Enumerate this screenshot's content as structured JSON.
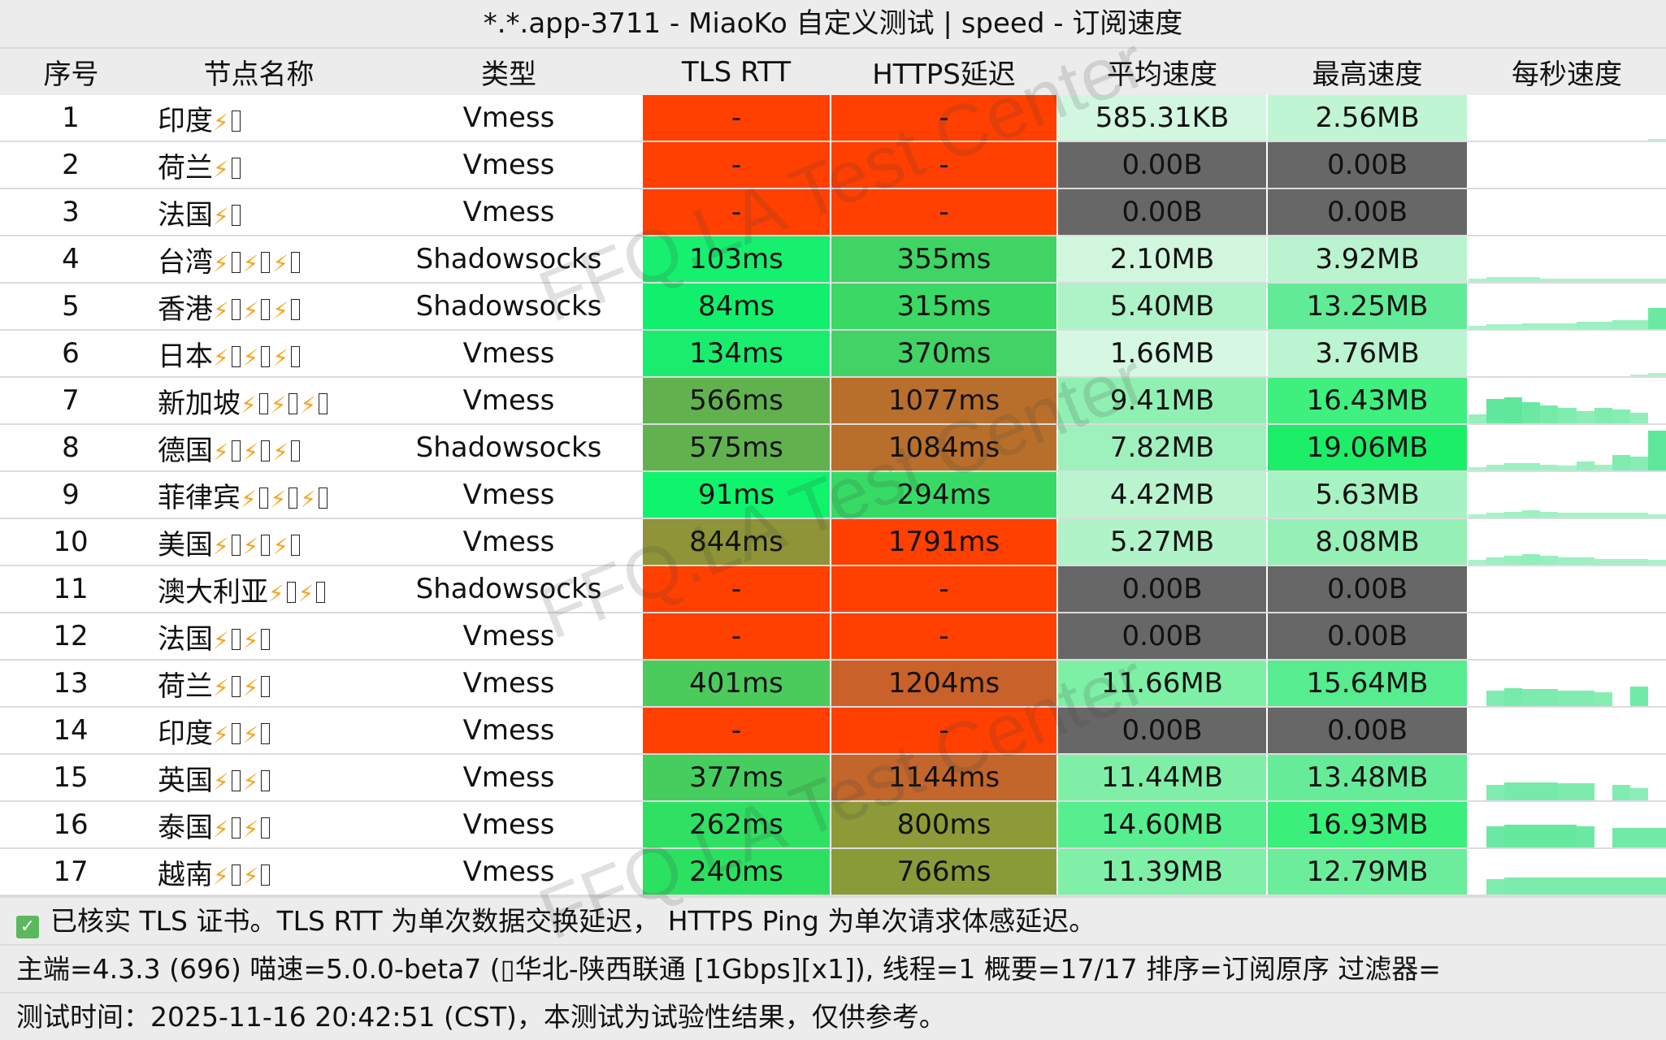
{
  "title": "*.*.app-3711 - MiaoKo 自定义测试 | speed - 订阅速度",
  "columns": [
    "序号",
    "节点名称",
    "类型",
    "TLS RTT",
    "HTTPS延迟",
    "平均速度",
    "最高速度",
    "每秒速度"
  ],
  "colors": {
    "fail_red": "#ff4000",
    "dead_gray": "#676767",
    "bolt_orange": "#f5a623"
  },
  "rows": [
    {
      "idx": "1",
      "name": "印度",
      "flags": 1,
      "type": "Vmess",
      "tls": "-",
      "https": "-",
      "avg": "585.31KB",
      "max": "2.56MB",
      "tls_color": "#ff4000",
      "https_color": "#ff4000",
      "avg_color": "#d2f7e0",
      "max_color": "#c0f5d4",
      "spark": [
        0,
        0,
        0,
        0,
        0,
        0,
        0,
        0,
        0,
        0,
        1
      ]
    },
    {
      "idx": "2",
      "name": "荷兰",
      "flags": 1,
      "type": "Vmess",
      "tls": "-",
      "https": "-",
      "avg": "0.00B",
      "max": "0.00B",
      "tls_color": "#ff4000",
      "https_color": "#ff4000",
      "avg_color": "#676767",
      "max_color": "#676767",
      "spark": []
    },
    {
      "idx": "3",
      "name": "法国",
      "flags": 1,
      "type": "Vmess",
      "tls": "-",
      "https": "-",
      "avg": "0.00B",
      "max": "0.00B",
      "tls_color": "#ff4000",
      "https_color": "#ff4000",
      "avg_color": "#676767",
      "max_color": "#676767",
      "spark": []
    },
    {
      "idx": "4",
      "name": "台湾",
      "flags": 3,
      "type": "Shadowsocks",
      "tls": "103ms",
      "https": "355ms",
      "avg": "2.10MB",
      "max": "3.92MB",
      "tls_color": "#17ef6e",
      "https_color": "#3fd464",
      "avg_color": "#d0f7de",
      "max_color": "#b9f3cf",
      "spark": [
        2,
        3,
        3,
        3,
        2,
        2,
        2,
        2,
        2,
        2,
        2
      ]
    },
    {
      "idx": "5",
      "name": "香港",
      "flags": 3,
      "type": "Shadowsocks",
      "tls": "84ms",
      "https": "315ms",
      "avg": "5.40MB",
      "max": "13.25MB",
      "tls_color": "#11f06c",
      "https_color": "#3bd865",
      "avg_color": "#aef2c7",
      "max_color": "#62eb96",
      "spark": [
        2,
        3,
        3,
        4,
        4,
        4,
        5,
        5,
        6,
        6,
        14
      ]
    },
    {
      "idx": "6",
      "name": "日本",
      "flags": 3,
      "type": "Vmess",
      "tls": "134ms",
      "https": "370ms",
      "avg": "1.66MB",
      "max": "3.76MB",
      "tls_color": "#1aed6e",
      "https_color": "#43d265",
      "avg_color": "#d6f8e3",
      "max_color": "#bbf4d0",
      "spark": [
        0,
        0,
        0,
        0,
        0,
        0,
        0,
        0,
        0,
        1,
        2
      ]
    },
    {
      "idx": "7",
      "name": "新加坡",
      "flags": 3,
      "type": "Vmess",
      "tls": "566ms",
      "https": "1077ms",
      "avg": "9.41MB",
      "max": "16.43MB",
      "tls_color": "#61b24f",
      "https_color": "#b86f2b",
      "avg_color": "#8ff0b2",
      "max_color": "#3ff07e",
      "spark": [
        6,
        16,
        17,
        14,
        12,
        10,
        8,
        10,
        9,
        7,
        0
      ]
    },
    {
      "idx": "8",
      "name": "德国",
      "flags": 3,
      "type": "Shadowsocks",
      "tls": "575ms",
      "https": "1084ms",
      "avg": "7.82MB",
      "max": "19.06MB",
      "tls_color": "#61b24f",
      "https_color": "#b86f2b",
      "avg_color": "#9ef1bd",
      "max_color": "#1cee68",
      "spark": [
        2,
        4,
        5,
        5,
        4,
        3,
        6,
        4,
        10,
        9,
        26
      ]
    },
    {
      "idx": "9",
      "name": "菲律宾",
      "flags": 3,
      "type": "Vmess",
      "tls": "91ms",
      "https": "294ms",
      "avg": "4.42MB",
      "max": "5.63MB",
      "tls_color": "#0ff46c",
      "https_color": "#38da66",
      "avg_color": "#b9f4cf",
      "max_color": "#a6f2c2",
      "spark": [
        2,
        3,
        4,
        5,
        4,
        3,
        3,
        3,
        3,
        3,
        2
      ]
    },
    {
      "idx": "10",
      "name": "美国",
      "flags": 3,
      "type": "Vmess",
      "tls": "844ms",
      "https": "1791ms",
      "avg": "5.27MB",
      "max": "8.08MB",
      "tls_color": "#8e9437",
      "https_color": "#ff4000",
      "avg_color": "#b0f3c8",
      "max_color": "#96f0b6",
      "spark": [
        3,
        5,
        6,
        7,
        6,
        5,
        5,
        4,
        4,
        4,
        3
      ]
    },
    {
      "idx": "11",
      "name": "澳大利亚",
      "flags": 2,
      "type": "Shadowsocks",
      "tls": "-",
      "https": "-",
      "avg": "0.00B",
      "max": "0.00B",
      "tls_color": "#ff4000",
      "https_color": "#ff4000",
      "avg_color": "#676767",
      "max_color": "#676767",
      "spark": []
    },
    {
      "idx": "12",
      "name": "法国",
      "flags": 2,
      "type": "Vmess",
      "tls": "-",
      "https": "-",
      "avg": "0.00B",
      "max": "0.00B",
      "tls_color": "#ff4000",
      "https_color": "#ff4000",
      "avg_color": "#676767",
      "max_color": "#676767",
      "spark": []
    },
    {
      "idx": "13",
      "name": "荷兰",
      "flags": 2,
      "type": "Vmess",
      "tls": "401ms",
      "https": "1204ms",
      "avg": "11.66MB",
      "max": "15.64MB",
      "tls_color": "#4bcb5c",
      "https_color": "#c9612a",
      "avg_color": "#7ef0a6",
      "max_color": "#56ec8f",
      "spark": [
        0,
        10,
        12,
        11,
        11,
        10,
        10,
        9,
        0,
        13,
        0
      ]
    },
    {
      "idx": "14",
      "name": "印度",
      "flags": 2,
      "type": "Vmess",
      "tls": "-",
      "https": "-",
      "avg": "0.00B",
      "max": "0.00B",
      "tls_color": "#ff4000",
      "https_color": "#ff4000",
      "avg_color": "#676767",
      "max_color": "#676767",
      "spark": []
    },
    {
      "idx": "15",
      "name": "英国",
      "flags": 2,
      "type": "Vmess",
      "tls": "377ms",
      "https": "1144ms",
      "avg": "11.44MB",
      "max": "13.48MB",
      "tls_color": "#45ce5e",
      "https_color": "#c2662b",
      "avg_color": "#7fefa7",
      "max_color": "#66ec99",
      "spark": [
        0,
        10,
        12,
        12,
        12,
        11,
        11,
        0,
        10,
        8,
        0
      ]
    },
    {
      "idx": "16",
      "name": "泰国",
      "flags": 2,
      "type": "Vmess",
      "tls": "262ms",
      "https": "800ms",
      "avg": "14.60MB",
      "max": "16.93MB",
      "tls_color": "#2fe062",
      "https_color": "#8c9a37",
      "avg_color": "#56ee8f",
      "max_color": "#3bef7b",
      "spark": [
        0,
        14,
        15,
        15,
        15,
        15,
        14,
        0,
        13,
        13,
        13
      ]
    },
    {
      "idx": "17",
      "name": "越南",
      "flags": 2,
      "type": "Vmess",
      "tls": "240ms",
      "https": "766ms",
      "avg": "11.39MB",
      "max": "12.79MB",
      "tls_color": "#2ce162",
      "https_color": "#879c38",
      "avg_color": "#80efa8",
      "max_color": "#6ced9c",
      "spark": [
        0,
        10,
        11,
        11,
        11,
        11,
        11,
        11,
        11,
        11,
        11
      ]
    }
  ],
  "footer": {
    "note": "已核实 TLS 证书。TLS RTT 为单次数据交换延迟， HTTPS Ping 为单次请求体感延迟。",
    "info": "主端=4.3.3 (696) 喵速=5.0.0-beta7 (▯华北-陕西联通 [1Gbps][x1]), 线程=1 概要=17/17 排序=订阅原序 过滤器=",
    "time": "测试时间：2025-11-16 20:42:51 (CST)，本测试为试验性结果，仅供参考。"
  },
  "watermark": "FFQ.LA Test Center"
}
